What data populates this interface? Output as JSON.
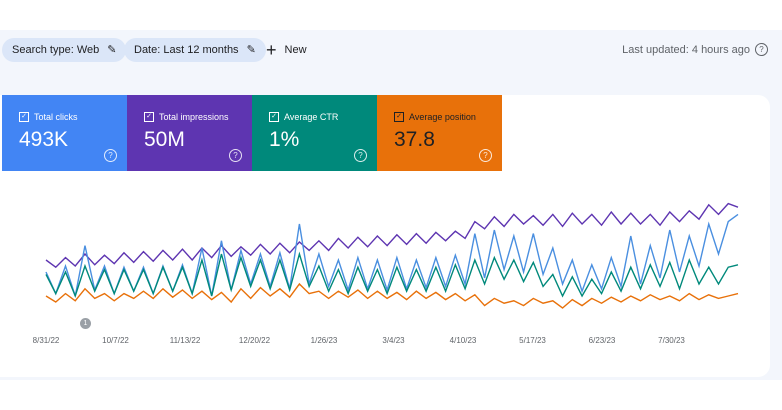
{
  "filters": {
    "search_type": "Search type: Web",
    "date": "Date: Last 12 months",
    "new_label": "New",
    "last_updated": "Last updated: 4 hours ago"
  },
  "metrics": [
    {
      "label": "Total clicks",
      "value": "493K",
      "color": "#4285f4",
      "checked": true
    },
    {
      "label": "Total impressions",
      "value": "50M",
      "color": "#5e35b1",
      "checked": true
    },
    {
      "label": "Average CTR",
      "value": "1%",
      "color": "#00897b",
      "checked": true
    },
    {
      "label": "Average position",
      "value": "37.8",
      "color": "#e8710a",
      "checked": true
    }
  ],
  "annotation": {
    "label": "1"
  },
  "chart_data": {
    "type": "line",
    "x_tick_labels": [
      "8/31/22",
      "10/7/22",
      "11/13/22",
      "12/20/22",
      "1/26/23",
      "3/4/23",
      "4/10/23",
      "5/17/23",
      "6/23/23",
      "7/30/23"
    ],
    "x_range": [
      "8/31/22",
      "8/25/23"
    ],
    "y_axis_shown": false,
    "grid": false,
    "series": [
      {
        "name": "Total impressions",
        "color": "#5e35b1",
        "values": [
          50,
          44,
          52,
          45,
          55,
          46,
          54,
          47,
          56,
          48,
          57,
          49,
          58,
          50,
          59,
          50,
          60,
          52,
          62,
          53,
          61,
          54,
          63,
          55,
          64,
          56,
          65,
          58,
          66,
          58,
          68,
          60,
          69,
          61,
          70,
          62,
          71,
          63,
          72,
          64,
          73,
          66,
          74,
          68,
          82,
          76,
          86,
          78,
          88,
          80,
          87,
          79,
          88,
          78,
          89,
          80,
          88,
          79,
          90,
          80,
          89,
          80,
          88,
          79,
          90,
          82,
          91,
          84,
          96,
          88,
          97,
          94
        ]
      },
      {
        "name": "Total clicks",
        "color": "#4a8fe0",
        "values": [
          40,
          22,
          45,
          20,
          62,
          25,
          45,
          22,
          44,
          24,
          44,
          22,
          45,
          24,
          46,
          22,
          60,
          20,
          66,
          25,
          58,
          30,
          55,
          28,
          56,
          26,
          80,
          30,
          55,
          28,
          50,
          25,
          52,
          26,
          50,
          25,
          52,
          26,
          50,
          27,
          52,
          28,
          54,
          30,
          72,
          35,
          75,
          42,
          70,
          40,
          72,
          38,
          60,
          30,
          50,
          24,
          46,
          26,
          52,
          28,
          70,
          30,
          62,
          35,
          75,
          40,
          70,
          45,
          80,
          55,
          82,
          88
        ]
      },
      {
        "name": "Average CTR",
        "color": "#00897b",
        "values": [
          38,
          22,
          40,
          20,
          45,
          24,
          42,
          22,
          42,
          24,
          42,
          22,
          44,
          24,
          44,
          22,
          50,
          20,
          55,
          25,
          52,
          28,
          50,
          26,
          50,
          25,
          55,
          28,
          45,
          24,
          42,
          22,
          44,
          24,
          42,
          22,
          44,
          24,
          42,
          24,
          44,
          24,
          46,
          26,
          50,
          30,
          52,
          34,
          50,
          32,
          48,
          28,
          38,
          20,
          36,
          20,
          34,
          22,
          40,
          24,
          44,
          26,
          46,
          28,
          48,
          26,
          50,
          30,
          44,
          30,
          44,
          46
        ]
      },
      {
        "name": "Average position",
        "color": "#e8710a",
        "values": [
          20,
          15,
          22,
          16,
          26,
          18,
          22,
          16,
          22,
          18,
          24,
          18,
          26,
          19,
          25,
          18,
          24,
          17,
          23,
          15,
          26,
          18,
          27,
          20,
          26,
          19,
          30,
          22,
          24,
          18,
          24,
          19,
          25,
          18,
          24,
          18,
          23,
          17,
          24,
          18,
          23,
          17,
          22,
          16,
          21,
          12,
          18,
          14,
          16,
          12,
          18,
          14,
          16,
          10,
          17,
          12,
          18,
          14,
          19,
          15,
          20,
          16,
          21,
          17,
          20,
          16,
          22,
          17,
          21,
          18,
          20,
          22
        ]
      }
    ]
  }
}
